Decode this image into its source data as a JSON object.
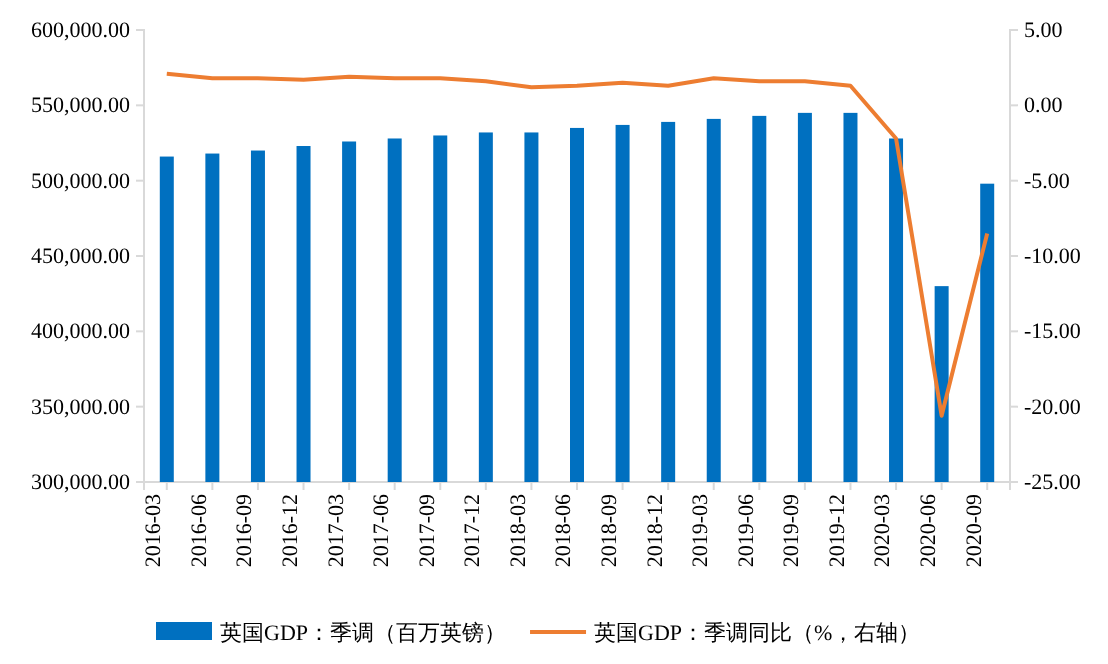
{
  "chart_data": {
    "type": "bar",
    "categories": [
      "2016-03",
      "2016-06",
      "2016-09",
      "2016-12",
      "2017-03",
      "2017-06",
      "2017-09",
      "2017-12",
      "2018-03",
      "2018-06",
      "2018-09",
      "2018-12",
      "2019-03",
      "2019-06",
      "2019-09",
      "2019-12",
      "2020-03",
      "2020-06",
      "2020-09"
    ],
    "series": [
      {
        "name": "英国GDP：季调（百万英镑）",
        "color": "#0070c0",
        "values": [
          516000,
          518000,
          520000,
          523000,
          526000,
          528000,
          530000,
          532000,
          532000,
          535000,
          537000,
          539000,
          541000,
          543000,
          545000,
          545000,
          528000,
          430000,
          498000
        ]
      },
      {
        "name": "英国GDP：季调同比（%，右轴）",
        "type": "line",
        "axis": "y2",
        "color": "#ed7d31",
        "values": [
          2.1,
          1.8,
          1.8,
          1.7,
          1.9,
          1.8,
          1.8,
          1.6,
          1.2,
          1.3,
          1.5,
          1.3,
          1.8,
          1.6,
          1.6,
          1.3,
          -2.2,
          -20.6,
          -8.5
        ]
      }
    ],
    "ylim": [
      300000,
      600000
    ],
    "yticks": [
      {
        "value": 300000,
        "label": "300,000.00"
      },
      {
        "value": 350000,
        "label": "350,000.00"
      },
      {
        "value": 400000,
        "label": "400,000.00"
      },
      {
        "value": 450000,
        "label": "450,000.00"
      },
      {
        "value": 500000,
        "label": "500,000.00"
      },
      {
        "value": 550000,
        "label": "550,000.00"
      },
      {
        "value": 600000,
        "label": "600,000.00"
      }
    ],
    "y2lim": [
      -25,
      5
    ],
    "y2ticks": [
      {
        "value": -25,
        "label": "-25.00"
      },
      {
        "value": -20,
        "label": "-20.00"
      },
      {
        "value": -15,
        "label": "-15.00"
      },
      {
        "value": -10,
        "label": "-10.00"
      },
      {
        "value": -5,
        "label": "-5.00"
      },
      {
        "value": 0,
        "label": "0.00"
      },
      {
        "value": 5,
        "label": "5.00"
      }
    ],
    "legend": "bottom"
  }
}
